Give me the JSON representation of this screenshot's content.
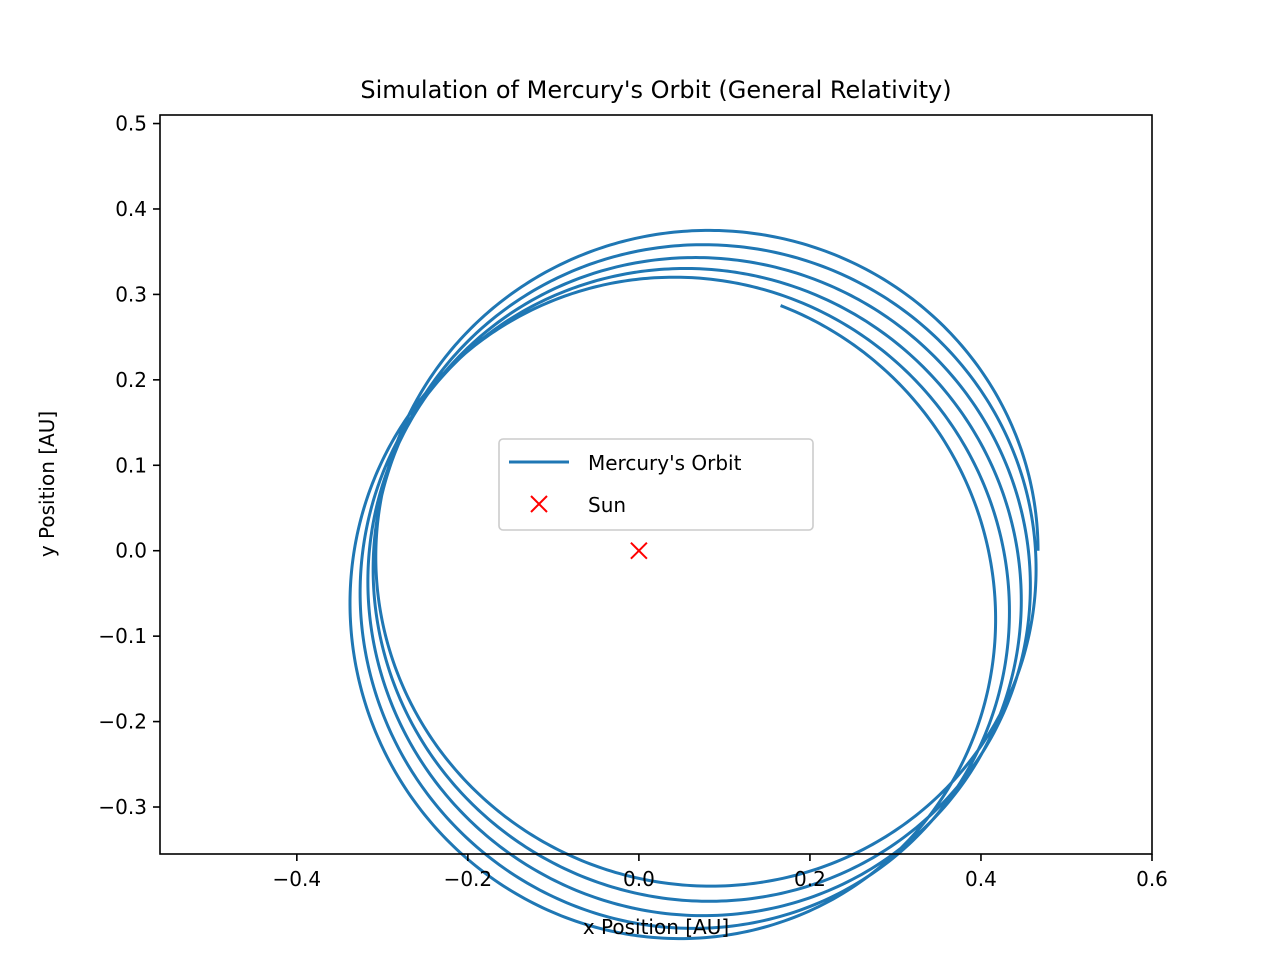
{
  "chart_data": {
    "type": "line",
    "title": "Simulation of Mercury's Orbit (General Relativity)",
    "xlabel": "x Position [AU]",
    "ylabel": "y Position [AU]",
    "xlim": [
      -0.56,
      0.6
    ],
    "ylim": [
      -0.355,
      0.51
    ],
    "xticks": [
      -0.4,
      -0.2,
      0.0,
      0.2,
      0.4,
      0.6
    ],
    "xtick_labels": [
      "−0.4",
      "−0.2",
      "0.0",
      "0.2",
      "0.4",
      "0.6"
    ],
    "yticks": [
      -0.3,
      -0.2,
      -0.1,
      0.0,
      0.1,
      0.2,
      0.3,
      0.4,
      0.5
    ],
    "ytick_labels": [
      "−0.3",
      "−0.2",
      "−0.1",
      "0.0",
      "0.1",
      "0.2",
      "0.3",
      "0.4",
      "0.5"
    ],
    "grid": false,
    "legend_position": "center",
    "series": [
      {
        "name": "Mercury's Orbit",
        "kind": "line",
        "color": "#1f77b4",
        "orbit_model": {
          "semi_major_axis": 0.387,
          "eccentricity": 0.206,
          "perihelion_start_deg": 180,
          "perihelion_shift_deg_per_orbit": -12.6,
          "start_angle_deg": 0,
          "end_angle_deg": 1860
        }
      },
      {
        "name": "Sun",
        "kind": "marker",
        "marker": "x",
        "color": "#ff0000",
        "x": [
          0.0
        ],
        "y": [
          0.0
        ]
      }
    ]
  }
}
